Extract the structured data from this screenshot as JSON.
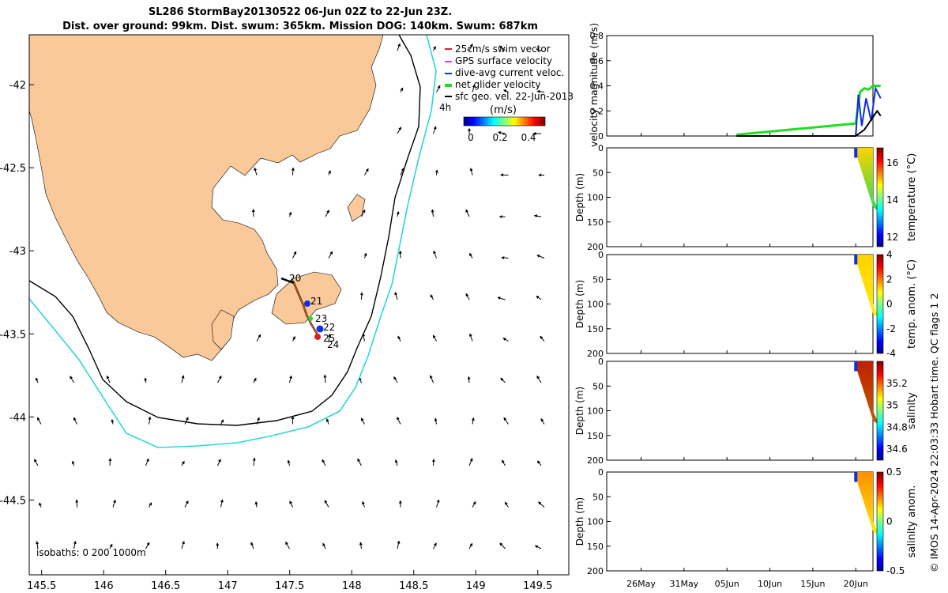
{
  "header": {
    "title_line1": "SL286 StormBay20130522 06-Jun 02Z to 22-Jun 23Z.",
    "title_line2": "Dist. over ground: 99km. Dist. swum: 365km. Mission DOG: 140km. Swum: 687km"
  },
  "credit": "© IMOS 14-Apr-2024 22:03:33 Hobart time. QC flags 1  2",
  "colors": {
    "land": "#FAC99A",
    "isobath_200": "#000000",
    "isobath_1000": "#2ED6D6",
    "swim_vector": "#E02020",
    "gps_velocity": "#E040E0",
    "dive_avg": "#1030E0",
    "net_velocity": "#22DD22",
    "sfc_geo": "#000000"
  },
  "map": {
    "x_ticks": [
      "145.5",
      "146",
      "146.5",
      "147",
      "147.5",
      "148",
      "148.5",
      "149",
      "149.5"
    ],
    "y_ticks": [
      "-42",
      "-42.5",
      "-43",
      "-43.5",
      "-44",
      "-44.5"
    ],
    "legend": [
      {
        "label": "25cm/s swim vector",
        "color": "#E02020"
      },
      {
        "label": "GPS surface velocity",
        "color": "#E040E0"
      },
      {
        "label": "dive-avg current veloc.",
        "color": "#1030E0"
      },
      {
        "label": "net glider velocity",
        "color": "#22DD22"
      },
      {
        "label": "sfc geo. vel. 22-Jun-2013",
        "color": "#000000"
      }
    ],
    "colorbar_title": "(m/s)",
    "colorbar_ticks": [
      "0",
      "0.2",
      "0.4"
    ],
    "time_label": "4h",
    "isobaths_label": "isobaths: 0   200  1000m",
    "track_day_labels": [
      "20",
      "21",
      "23",
      "22",
      "25",
      "24"
    ]
  },
  "chart_data": [
    {
      "type": "line",
      "name": "velocity",
      "ylabel": "velocity magnitude (m/s)",
      "ylim": [
        0,
        0.8
      ],
      "y_ticks": [
        "0",
        "0.2",
        "0.4",
        "0.6",
        "0.8"
      ],
      "x_ticks": [
        "26May",
        "31May",
        "05Jun",
        "10Jun",
        "15Jun",
        "20Jun"
      ],
      "series": [
        {
          "name": "net glider velocity",
          "color": "#22DD22",
          "x": [
            6.1,
            20.0,
            20.5,
            21.0,
            21.5,
            22.0,
            22.9
          ],
          "y": [
            0.01,
            0.1,
            0.35,
            0.38,
            0.37,
            0.4,
            0.4
          ]
        },
        {
          "name": "dive-avg current veloc.",
          "color": "#1030E0",
          "x": [
            20.0,
            20.3,
            20.7,
            21.2,
            21.8,
            22.3,
            22.9
          ],
          "y": [
            0.0,
            0.33,
            0.08,
            0.3,
            0.12,
            0.38,
            0.3
          ]
        },
        {
          "name": "sfc geo. vel.",
          "color": "#000000",
          "x": [
            6.1,
            20.0,
            21.0,
            22.0,
            22.5,
            22.9
          ],
          "y": [
            0.0,
            0.0,
            0.05,
            0.15,
            0.2,
            0.16
          ]
        }
      ]
    },
    {
      "type": "heatmap",
      "name": "temperature",
      "ylabel": "Depth (m)",
      "cbar_label": "temperature (°C)",
      "ylim": [
        0,
        200
      ],
      "y_ticks": [
        "0",
        "50",
        "100",
        "150",
        "200"
      ],
      "cbar_ticks": [
        "12",
        "14",
        "16"
      ],
      "cbar_range": [
        11.5,
        16.8
      ]
    },
    {
      "type": "heatmap",
      "name": "temperature anomaly",
      "ylabel": "Depth (m)",
      "cbar_label": "temp. anom. (°C)",
      "ylim": [
        0,
        200
      ],
      "y_ticks": [
        "0",
        "50",
        "100",
        "150",
        "200"
      ],
      "cbar_ticks": [
        "-4",
        "-2",
        "0",
        "2",
        "4"
      ],
      "cbar_range": [
        -4,
        4
      ]
    },
    {
      "type": "heatmap",
      "name": "salinity",
      "ylabel": "Depth (m)",
      "cbar_label": "salinity",
      "ylim": [
        0,
        200
      ],
      "y_ticks": [
        "0",
        "50",
        "100",
        "150",
        "200"
      ],
      "cbar_ticks": [
        "34.6",
        "34.8",
        "35",
        "35.2"
      ],
      "cbar_range": [
        34.5,
        35.4
      ]
    },
    {
      "type": "heatmap",
      "name": "salinity anomaly",
      "ylabel": "Depth (m)",
      "cbar_label": "salinity anom.",
      "ylim": [
        0,
        200
      ],
      "y_ticks": [
        "0",
        "50",
        "100",
        "150",
        "200"
      ],
      "cbar_ticks": [
        "-0.5",
        "0",
        "0.5"
      ],
      "cbar_range": [
        -0.5,
        0.5
      ],
      "x_ticks": [
        "26May",
        "31May",
        "05Jun",
        "10Jun",
        "15Jun",
        "20Jun"
      ]
    }
  ]
}
